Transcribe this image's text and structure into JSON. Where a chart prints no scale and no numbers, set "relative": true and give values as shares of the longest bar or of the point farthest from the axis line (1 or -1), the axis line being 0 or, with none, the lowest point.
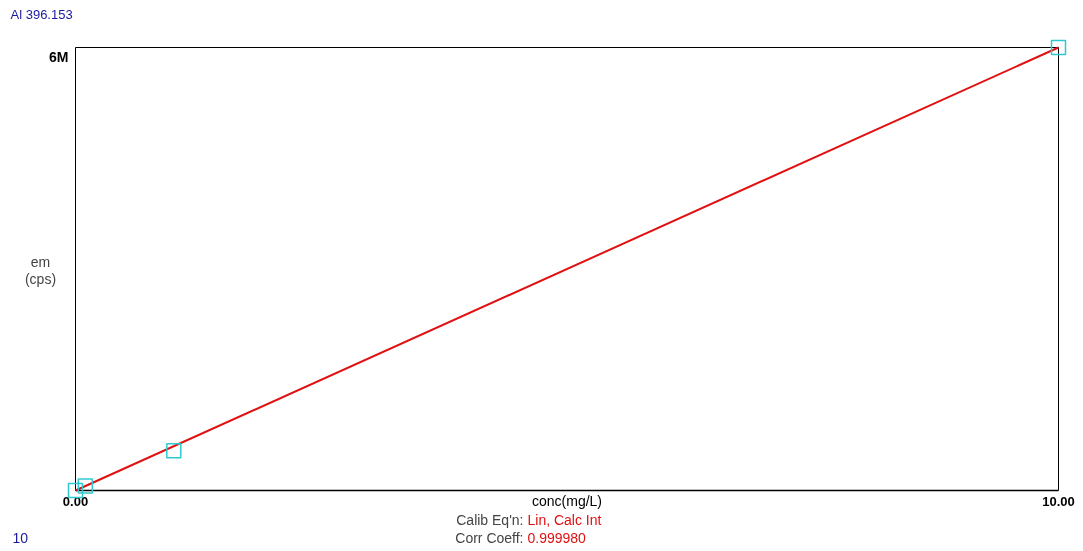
{
  "chart_data": {
    "type": "scatter",
    "title": "Al 396.153",
    "xlabel": "conc(mg/L)",
    "ylabel": "em (cps)",
    "relative": true,
    "xlim": [
      0,
      10
    ],
    "xticks": [
      {
        "value": 0,
        "label": "0.00"
      },
      {
        "value": 10,
        "label": "10.00"
      }
    ],
    "marker": "square",
    "grid": false,
    "series": [
      {
        "type": "line",
        "color": "#e01010",
        "x": [
          0,
          10
        ],
        "values": [
          0,
          1
        ],
        "marker": "none"
      },
      {
        "color": "#30c8d0",
        "x": [
          0,
          0.1,
          1,
          10
        ],
        "values": [
          0,
          0.01,
          0.09,
          1
        ]
      }
    ],
    "annotations": [
      "6M",
      "Calib Eq'n: Lin, Calc Int",
      "Corr Coeff: 0.999980",
      "10"
    ]
  }
}
